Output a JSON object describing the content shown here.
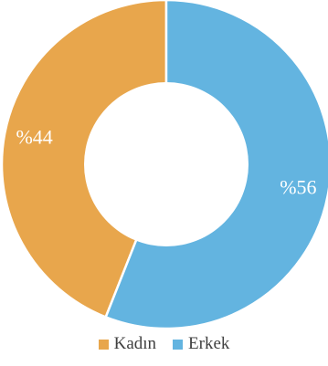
{
  "chart_data": {
    "type": "pie",
    "variant": "donut",
    "categories": [
      "Kadın",
      "Erkek"
    ],
    "values": [
      44,
      56
    ],
    "data_labels": [
      "%44",
      "%56"
    ],
    "colors": [
      "#E8A64C",
      "#63B4E0"
    ],
    "legend_position": "bottom",
    "start_angle": "top (12 o'clock)",
    "direction": "counterclockwise"
  }
}
